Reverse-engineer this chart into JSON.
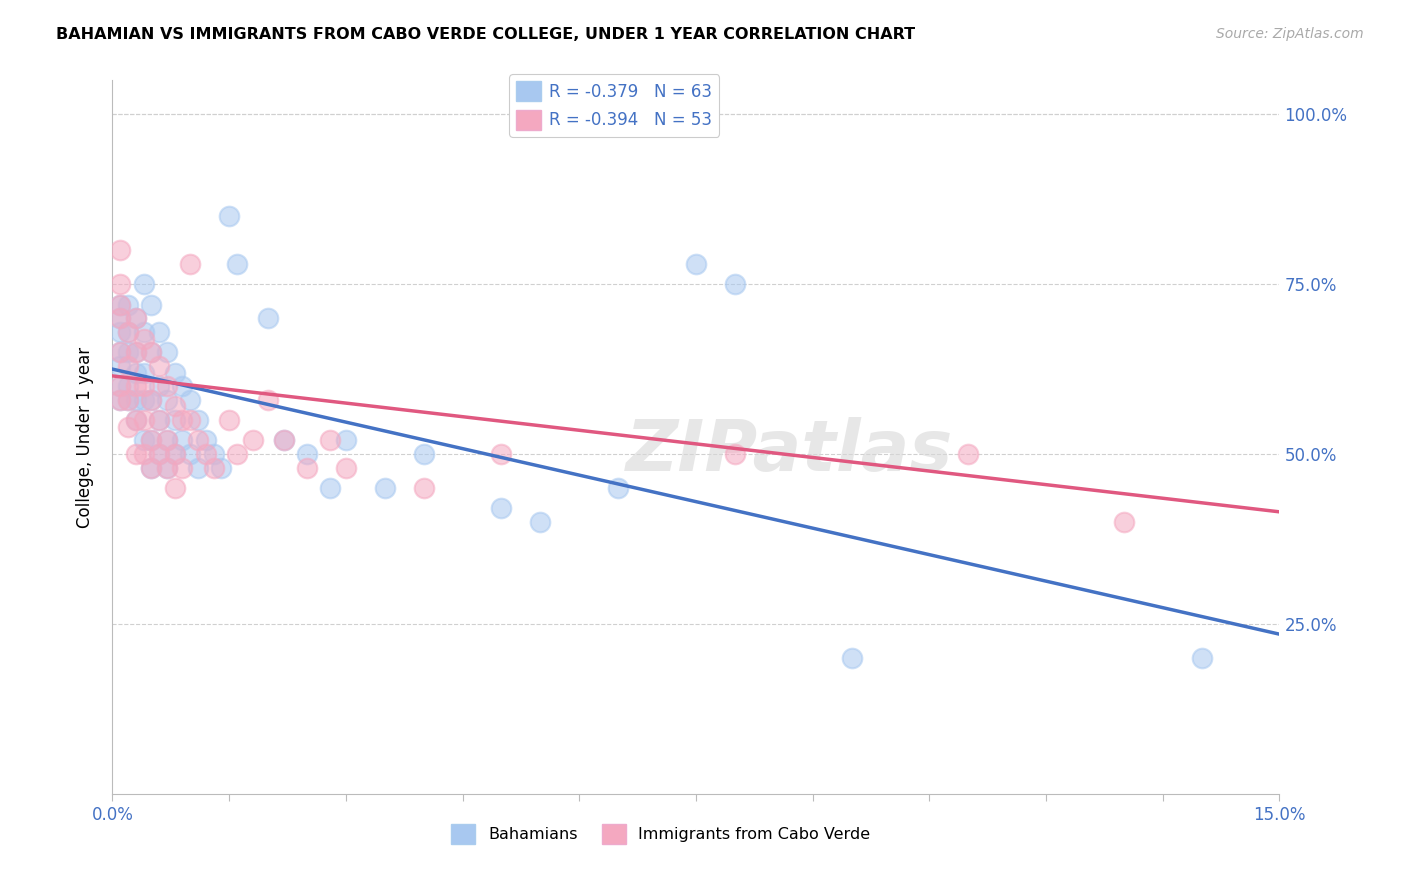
{
  "title": "BAHAMIAN VS IMMIGRANTS FROM CABO VERDE COLLEGE, UNDER 1 YEAR CORRELATION CHART",
  "source": "Source: ZipAtlas.com",
  "ylabel": "College, Under 1 year",
  "x_min": 0.0,
  "x_max": 0.15,
  "y_min": 0.0,
  "y_max": 1.05,
  "legend_blue_label": "R = -0.379   N = 63",
  "legend_pink_label": "R = -0.394   N = 53",
  "bahamians_label": "Bahamians",
  "caboverde_label": "Immigrants from Cabo Verde",
  "blue_color": "#a8c8f0",
  "pink_color": "#f4a8c0",
  "blue_line_color": "#4472c4",
  "pink_line_color": "#e05880",
  "watermark": "ZIPatlas",
  "blue_line_y0": 0.625,
  "blue_line_y1": 0.235,
  "pink_line_y0": 0.615,
  "pink_line_y1": 0.415,
  "blue_scatter": [
    [
      0.001,
      0.68
    ],
    [
      0.001,
      0.72
    ],
    [
      0.001,
      0.65
    ],
    [
      0.001,
      0.6
    ],
    [
      0.001,
      0.63
    ],
    [
      0.001,
      0.7
    ],
    [
      0.001,
      0.58
    ],
    [
      0.002,
      0.68
    ],
    [
      0.002,
      0.65
    ],
    [
      0.002,
      0.72
    ],
    [
      0.002,
      0.6
    ],
    [
      0.002,
      0.58
    ],
    [
      0.003,
      0.7
    ],
    [
      0.003,
      0.65
    ],
    [
      0.003,
      0.62
    ],
    [
      0.003,
      0.58
    ],
    [
      0.003,
      0.55
    ],
    [
      0.004,
      0.75
    ],
    [
      0.004,
      0.68
    ],
    [
      0.004,
      0.62
    ],
    [
      0.004,
      0.58
    ],
    [
      0.004,
      0.52
    ],
    [
      0.005,
      0.72
    ],
    [
      0.005,
      0.65
    ],
    [
      0.005,
      0.58
    ],
    [
      0.005,
      0.52
    ],
    [
      0.005,
      0.48
    ],
    [
      0.006,
      0.68
    ],
    [
      0.006,
      0.6
    ],
    [
      0.006,
      0.55
    ],
    [
      0.006,
      0.5
    ],
    [
      0.007,
      0.65
    ],
    [
      0.007,
      0.58
    ],
    [
      0.007,
      0.52
    ],
    [
      0.007,
      0.48
    ],
    [
      0.008,
      0.62
    ],
    [
      0.008,
      0.55
    ],
    [
      0.008,
      0.5
    ],
    [
      0.009,
      0.6
    ],
    [
      0.009,
      0.52
    ],
    [
      0.01,
      0.58
    ],
    [
      0.01,
      0.5
    ],
    [
      0.011,
      0.55
    ],
    [
      0.011,
      0.48
    ],
    [
      0.012,
      0.52
    ],
    [
      0.013,
      0.5
    ],
    [
      0.014,
      0.48
    ],
    [
      0.015,
      0.85
    ],
    [
      0.016,
      0.78
    ],
    [
      0.02,
      0.7
    ],
    [
      0.022,
      0.52
    ],
    [
      0.025,
      0.5
    ],
    [
      0.028,
      0.45
    ],
    [
      0.03,
      0.52
    ],
    [
      0.035,
      0.45
    ],
    [
      0.04,
      0.5
    ],
    [
      0.05,
      0.42
    ],
    [
      0.055,
      0.4
    ],
    [
      0.065,
      0.45
    ],
    [
      0.075,
      0.78
    ],
    [
      0.08,
      0.75
    ],
    [
      0.095,
      0.2
    ],
    [
      0.14,
      0.2
    ]
  ],
  "pink_scatter": [
    [
      0.001,
      0.8
    ],
    [
      0.001,
      0.75
    ],
    [
      0.001,
      0.7
    ],
    [
      0.001,
      0.65
    ],
    [
      0.001,
      0.6
    ],
    [
      0.001,
      0.58
    ],
    [
      0.001,
      0.72
    ],
    [
      0.002,
      0.68
    ],
    [
      0.002,
      0.63
    ],
    [
      0.002,
      0.58
    ],
    [
      0.002,
      0.54
    ],
    [
      0.003,
      0.7
    ],
    [
      0.003,
      0.65
    ],
    [
      0.003,
      0.6
    ],
    [
      0.003,
      0.55
    ],
    [
      0.003,
      0.5
    ],
    [
      0.004,
      0.67
    ],
    [
      0.004,
      0.6
    ],
    [
      0.004,
      0.55
    ],
    [
      0.004,
      0.5
    ],
    [
      0.005,
      0.65
    ],
    [
      0.005,
      0.58
    ],
    [
      0.005,
      0.52
    ],
    [
      0.005,
      0.48
    ],
    [
      0.006,
      0.63
    ],
    [
      0.006,
      0.55
    ],
    [
      0.006,
      0.5
    ],
    [
      0.007,
      0.6
    ],
    [
      0.007,
      0.52
    ],
    [
      0.007,
      0.48
    ],
    [
      0.008,
      0.57
    ],
    [
      0.008,
      0.5
    ],
    [
      0.008,
      0.45
    ],
    [
      0.009,
      0.55
    ],
    [
      0.009,
      0.48
    ],
    [
      0.01,
      0.78
    ],
    [
      0.01,
      0.55
    ],
    [
      0.011,
      0.52
    ],
    [
      0.012,
      0.5
    ],
    [
      0.013,
      0.48
    ],
    [
      0.015,
      0.55
    ],
    [
      0.016,
      0.5
    ],
    [
      0.018,
      0.52
    ],
    [
      0.02,
      0.58
    ],
    [
      0.022,
      0.52
    ],
    [
      0.025,
      0.48
    ],
    [
      0.028,
      0.52
    ],
    [
      0.03,
      0.48
    ],
    [
      0.04,
      0.45
    ],
    [
      0.05,
      0.5
    ],
    [
      0.08,
      0.5
    ],
    [
      0.11,
      0.5
    ],
    [
      0.13,
      0.4
    ]
  ]
}
